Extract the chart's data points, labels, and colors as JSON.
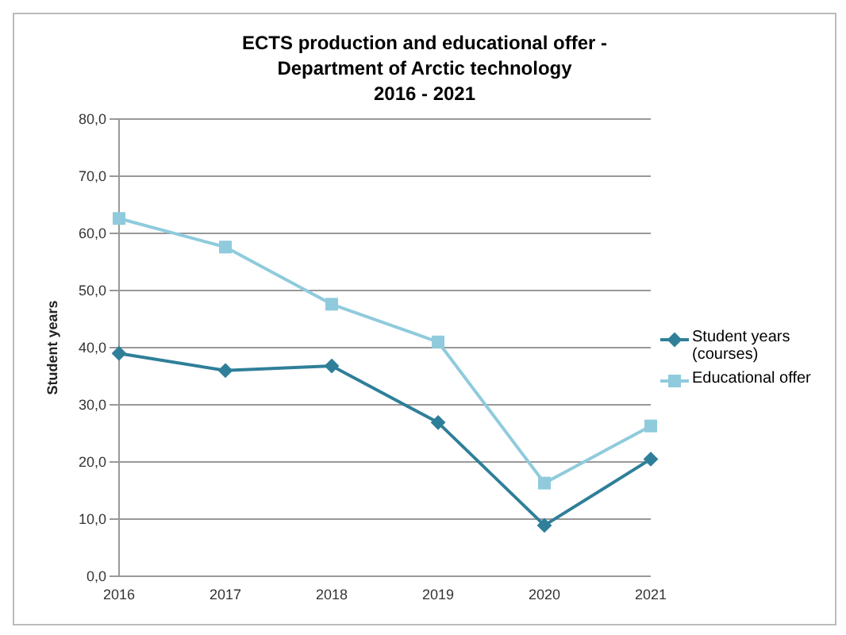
{
  "chart_data": {
    "type": "line",
    "title": "ECTS production and educational offer -\nDepartment of Arctic technology\n2016 - 2021",
    "ylabel": "Student years",
    "categories": [
      "2016",
      "2017",
      "2018",
      "2019",
      "2020",
      "2021"
    ],
    "series": [
      {
        "name": "Student years\n(courses)",
        "color": "#2f7f99",
        "marker": "diamond",
        "values": [
          39.0,
          36.0,
          36.8,
          26.9,
          8.9,
          20.5
        ]
      },
      {
        "name": "Educational offer",
        "color": "#8fcbdc",
        "marker": "square",
        "values": [
          62.6,
          57.6,
          47.6,
          41.0,
          16.3,
          26.3
        ]
      }
    ],
    "ylim": [
      0,
      80
    ],
    "yticks": [
      {
        "value": 0,
        "label": "0,0"
      },
      {
        "value": 10,
        "label": "10,0"
      },
      {
        "value": 20,
        "label": "20,0"
      },
      {
        "value": 30,
        "label": "30,0"
      },
      {
        "value": 40,
        "label": "40,0"
      },
      {
        "value": 50,
        "label": "50,0"
      },
      {
        "value": 60,
        "label": "60,0"
      },
      {
        "value": 70,
        "label": "70,0"
      },
      {
        "value": 80,
        "label": "80,0"
      }
    ],
    "grid": "y",
    "legend": "right"
  }
}
